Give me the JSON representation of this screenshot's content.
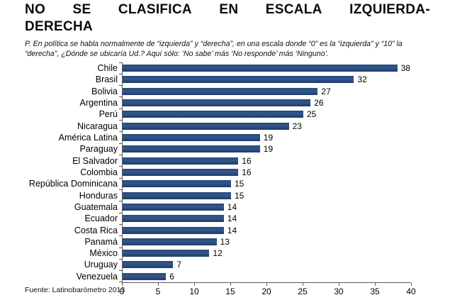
{
  "header": {
    "title_line1_words": [
      "NO",
      "SE",
      "CLASIFICA",
      "EN",
      "ESCALA",
      "IZQUIERDA-"
    ],
    "title_line2": "DERECHA",
    "subtitle_line1": "P. En política se habla normalmente de “izquierda” y “derecha”, en una escala donde “0” es la “izquierda” y “10” la",
    "subtitle_line2": "“derecha”, ¿Dónde se ubicaría Ud.? Aquí sólo: ‘No sabe’ más ‘No responde’ más ‘Ninguno’."
  },
  "chart_data": {
    "type": "bar",
    "orientation": "horizontal",
    "title": "NO SE CLASIFICA EN ESCALA IZQUIERDA-DERECHA",
    "categories": [
      "Chile",
      "Brasil",
      "Bolivia",
      "Argentina",
      "Perú",
      "Nicaragua",
      "América Latina",
      "Paraguay",
      "El Salvador",
      "Colombia",
      "República Dominicana",
      "Honduras",
      "Guatemala",
      "Ecuador",
      "Costa Rica",
      "Panamá",
      "México",
      "Uruguay",
      "Venezuela"
    ],
    "values": [
      38,
      32,
      27,
      26,
      25,
      23,
      19,
      19,
      16,
      16,
      15,
      15,
      14,
      14,
      14,
      13,
      12,
      7,
      6
    ],
    "xlim": [
      0,
      40
    ],
    "xticks": [
      0,
      5,
      10,
      15,
      20,
      25,
      30,
      35,
      40
    ],
    "xlabel": "",
    "ylabel": "",
    "grid": false,
    "legend": false,
    "bar_color": "#24497B",
    "axis_color": "#595959",
    "data_labels": true
  },
  "footer": {
    "source": "Fuente: Latinobarómetro 2013"
  }
}
